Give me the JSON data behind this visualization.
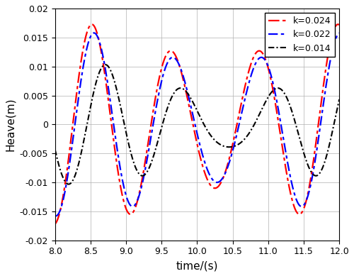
{
  "title": "",
  "xlabel": "time/(s)",
  "ylabel": "Heave(m)",
  "xlim": [
    8,
    12
  ],
  "ylim": [
    -0.02,
    0.02
  ],
  "xticks": [
    8,
    8.5,
    9,
    9.5,
    10,
    10.5,
    11,
    11.5,
    12
  ],
  "yticks": [
    -0.02,
    -0.015,
    -0.01,
    -0.005,
    0,
    0.005,
    0.01,
    0.015,
    0.02
  ],
  "series": [
    {
      "label": "k=0.024",
      "color": "#FF0000",
      "A1": 0.014,
      "A2": 0.004,
      "f1": 0.5,
      "f2": 0.548,
      "phi1": -0.52,
      "phi2": -0.52
    },
    {
      "label": "k=0.022",
      "color": "#0000FF",
      "A1": 0.013,
      "A2": 0.0035,
      "f1": 0.5,
      "f2": 0.548,
      "phi1": -0.52,
      "phi2": -0.52
    },
    {
      "label": "k=0.014",
      "color": "#000000",
      "A1": 0.0075,
      "A2": 0.003,
      "f1": 0.5,
      "f2": 0.548,
      "phi1": -1.05,
      "phi2": -1.05
    }
  ],
  "legend_loc": "upper right",
  "grid_color": "#b0b0b0",
  "grid_linewidth": 0.5,
  "background_color": "#ffffff",
  "figure_facecolor": "#ffffff"
}
